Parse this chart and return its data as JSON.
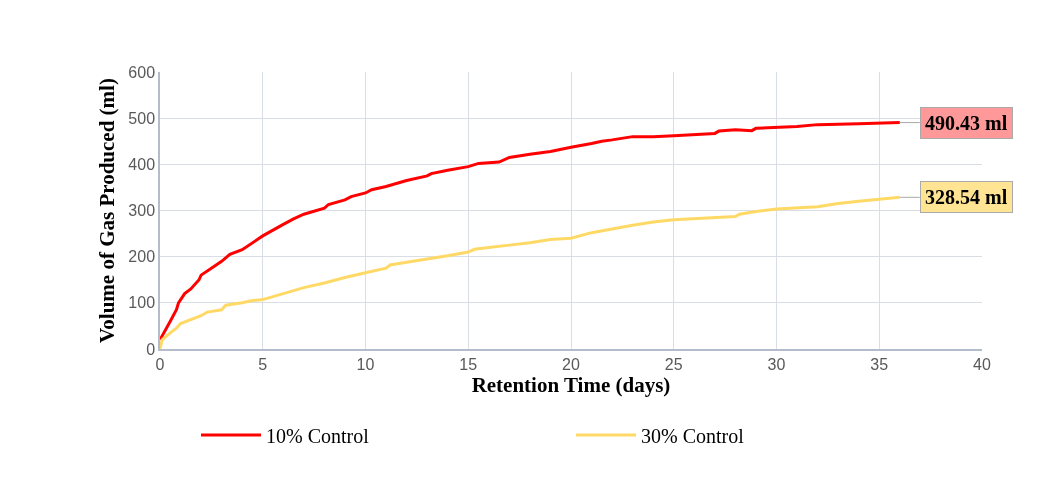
{
  "chart_data": {
    "type": "line",
    "xlabel": "Retention Time (days)",
    "ylabel": "Volume of Gas Produced (ml)",
    "xlim": [
      0,
      40
    ],
    "xticks": [
      0,
      5,
      10,
      15,
      20,
      25,
      30,
      35,
      40
    ],
    "ylim": [
      0,
      600
    ],
    "yticks": [
      0,
      100,
      200,
      300,
      400,
      500,
      600
    ],
    "grid": true,
    "legend": "bottom",
    "marker": "none",
    "line_style": "solid",
    "series": [
      {
        "name": "10% Control",
        "color": "#ff0000",
        "x": [
          0,
          0.5,
          0.8,
          0.9,
          1.2,
          1.5,
          1.9,
          2,
          2.5,
          3,
          3.4,
          4,
          5,
          6,
          6.5,
          7,
          8,
          8.2,
          9,
          9.3,
          10,
          10.3,
          11,
          12,
          13,
          13.2,
          14,
          15,
          15.5,
          16.5,
          17,
          18,
          19,
          20,
          21,
          21.5,
          22,
          23,
          24,
          25,
          27,
          27.2,
          28,
          28.8,
          29,
          31,
          32,
          34,
          36
        ],
        "values": [
          20,
          60,
          85,
          100,
          120,
          130,
          150,
          160,
          175,
          190,
          205,
          215,
          245,
          270,
          282,
          292,
          305,
          313,
          323,
          330,
          338,
          345,
          352,
          365,
          375,
          380,
          387,
          395,
          402,
          405,
          415,
          422,
          428,
          437,
          445,
          450,
          453,
          460,
          460,
          462,
          467,
          472,
          475,
          473,
          478,
          482,
          486,
          488,
          490.43
        ]
      },
      {
        "name": "30% Control",
        "color": "#ffd966",
        "x": [
          0,
          0.1,
          0.5,
          0.8,
          1,
          2,
          2.3,
          3,
          3.2,
          4,
          4.5,
          5,
          6,
          7,
          8,
          9,
          10,
          11,
          11.2,
          12,
          13,
          14,
          15,
          15.3,
          16,
          17,
          18,
          19,
          20,
          21,
          22,
          23,
          24,
          25,
          28,
          28.2,
          29,
          30,
          32,
          33,
          34,
          36
        ],
        "values": [
          0,
          20,
          35,
          45,
          55,
          72,
          80,
          85,
          95,
          100,
          105,
          107,
          120,
          133,
          143,
          155,
          165,
          175,
          182,
          188,
          195,
          202,
          210,
          216,
          220,
          225,
          230,
          237,
          240,
          252,
          260,
          268,
          275,
          280,
          287,
          292,
          298,
          303,
          308,
          315,
          320,
          328.54
        ]
      }
    ],
    "annotations": [
      {
        "text": "490.43 ml",
        "x": 36,
        "y": 490.43
      },
      {
        "text": "328.54 ml",
        "x": 36,
        "y": 328.54
      }
    ]
  }
}
